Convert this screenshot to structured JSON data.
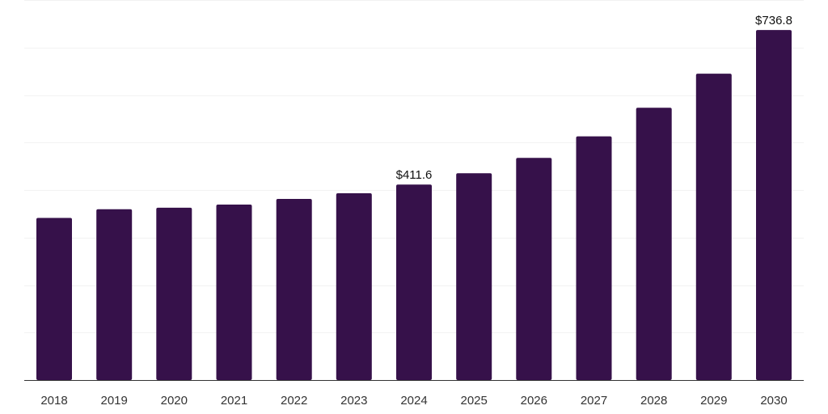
{
  "chart_data": {
    "type": "bar",
    "title": "",
    "xlabel": "",
    "ylabel": "",
    "categories": [
      "2018",
      "2019",
      "2020",
      "2021",
      "2022",
      "2023",
      "2024",
      "2025",
      "2026",
      "2027",
      "2028",
      "2029",
      "2030"
    ],
    "values": [
      341.2,
      359.7,
      362.8,
      369.4,
      381.3,
      393.2,
      411.6,
      435.4,
      467.5,
      513.0,
      573.1,
      645.0,
      736.8
    ],
    "data_labels": [
      {
        "category": "2024",
        "text": "$411.6"
      },
      {
        "category": "2030",
        "text": "$736.8"
      }
    ],
    "ylim": [
      0,
      800
    ],
    "gridlines": [
      0,
      100,
      200,
      300,
      400,
      500,
      600,
      700,
      800
    ],
    "grid": true,
    "bar_color": "#36114a",
    "legend": "none"
  }
}
